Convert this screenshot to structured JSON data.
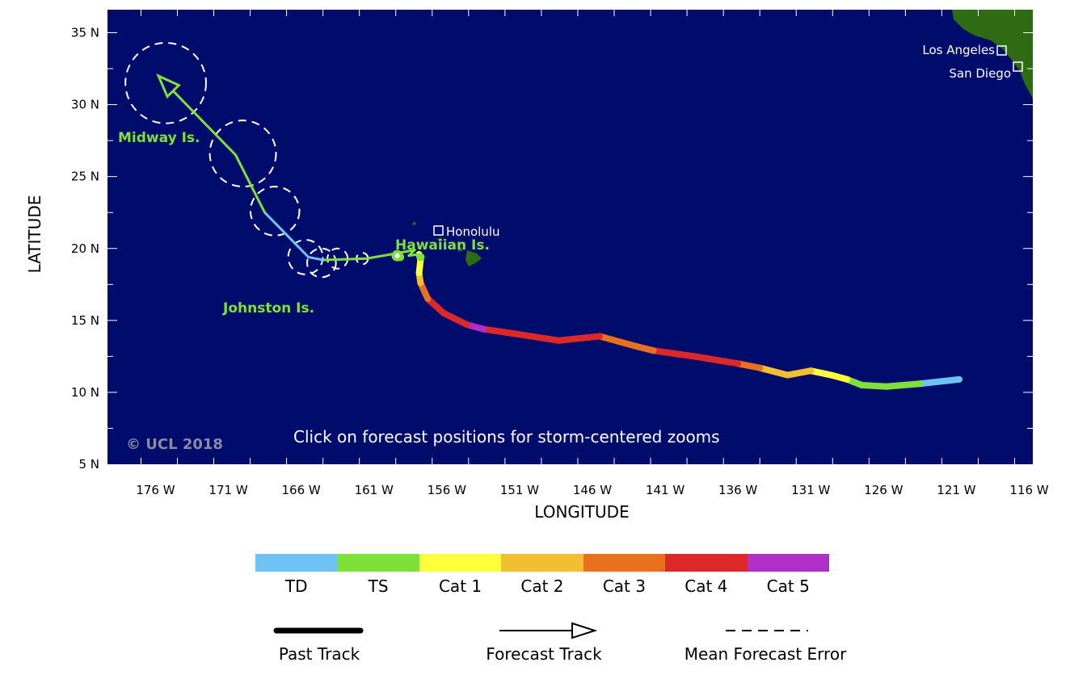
{
  "map": {
    "lon_ticks": [
      "176 W",
      "171 W",
      "166 W",
      "161 W",
      "156 W",
      "151 W",
      "146 W",
      "141 W",
      "136 W",
      "131 W",
      "126 W",
      "121 W",
      "116 W"
    ],
    "lat_ticks": [
      "35 N",
      "30 N",
      "25 N",
      "20 N",
      "15 N",
      "10 N",
      "5 N"
    ],
    "x_title": "LONGITUDE",
    "y_title": "LATITUDE",
    "ocean_color": "#000c6b",
    "land_color": "#2e6b12",
    "hint": "Click on forecast positions for storm-centered zooms",
    "copyright": "© UCL 2018",
    "places": {
      "los_angeles": "Los Angeles",
      "san_diego": "San Diego",
      "honolulu": "Honolulu"
    },
    "islands": {
      "midway": "Midway Is.",
      "hawaiian": "Hawaiian Is.",
      "johnston": "Johnston Is."
    }
  },
  "legend": {
    "categories": [
      {
        "label": "TD",
        "color": "#6ec3f4"
      },
      {
        "label": "TS",
        "color": "#7fe03a"
      },
      {
        "label": "Cat 1",
        "color": "#ffff3c"
      },
      {
        "label": "Cat 2",
        "color": "#f0c030"
      },
      {
        "label": "Cat 3",
        "color": "#e8701e"
      },
      {
        "label": "Cat 4",
        "color": "#dc2828"
      },
      {
        "label": "Cat 5",
        "color": "#b02fc8"
      }
    ],
    "past_track": "Past Track",
    "forecast_track": "Forecast Track",
    "mean_error": "Mean Forecast Error"
  },
  "track": {
    "past": [
      {
        "lon": -120.8,
        "lat": 10.9,
        "cat": "TD"
      },
      {
        "lon": -123.5,
        "lat": 10.6,
        "cat": "TD"
      },
      {
        "lon": -125.8,
        "lat": 10.4,
        "cat": "TS"
      },
      {
        "lon": -127.5,
        "lat": 10.5,
        "cat": "TS"
      },
      {
        "lon": -128.5,
        "lat": 10.9,
        "cat": "TS"
      },
      {
        "lon": -129.6,
        "lat": 11.2,
        "cat": "Cat 1"
      },
      {
        "lon": -131.0,
        "lat": 11.5,
        "cat": "Cat 1"
      },
      {
        "lon": -132.6,
        "lat": 11.2,
        "cat": "Cat 2"
      },
      {
        "lon": -134.5,
        "lat": 11.7,
        "cat": "Cat 2"
      },
      {
        "lon": -136.0,
        "lat": 12.0,
        "cat": "Cat 3"
      },
      {
        "lon": -139.0,
        "lat": 12.5,
        "cat": "Cat 4"
      },
      {
        "lon": -141.8,
        "lat": 12.9,
        "cat": "Cat 4"
      },
      {
        "lon": -143.0,
        "lat": 13.2,
        "cat": "Cat 3"
      },
      {
        "lon": -145.5,
        "lat": 13.9,
        "cat": "Cat 3"
      },
      {
        "lon": -148.3,
        "lat": 13.6,
        "cat": "Cat 4"
      },
      {
        "lon": -151.5,
        "lat": 14.1,
        "cat": "Cat 4"
      },
      {
        "lon": -153.5,
        "lat": 14.4,
        "cat": "Cat 4"
      },
      {
        "lon": -154.6,
        "lat": 14.7,
        "cat": "Cat 5"
      },
      {
        "lon": -156.2,
        "lat": 15.5,
        "cat": "Cat 4"
      },
      {
        "lon": -157.3,
        "lat": 16.5,
        "cat": "Cat 4"
      },
      {
        "lon": -157.8,
        "lat": 17.6,
        "cat": "Cat 3"
      },
      {
        "lon": -157.9,
        "lat": 18.3,
        "cat": "Cat 2"
      },
      {
        "lon": -157.8,
        "lat": 19.2,
        "cat": "Cat 1"
      },
      {
        "lon": -157.9,
        "lat": 19.6,
        "cat": "Cat 1"
      }
    ],
    "forecast": [
      {
        "lon": -157.9,
        "lat": 19.6,
        "cat": "Cat 1"
      },
      {
        "lon": -158.6,
        "lat": 19.5,
        "cat": "TS"
      },
      {
        "lon": -158.2,
        "lat": 19.9,
        "cat": "TS"
      },
      {
        "lon": -159.8,
        "lat": 19.6,
        "cat": "TS"
      },
      {
        "lon": -161.5,
        "lat": 19.3,
        "cat": "TS"
      },
      {
        "lon": -164.5,
        "lat": 19.2,
        "cat": "TS"
      },
      {
        "lon": -165.5,
        "lat": 19.4,
        "cat": "TD"
      },
      {
        "lon": -168.5,
        "lat": 22.5,
        "cat": "TD"
      },
      {
        "lon": -170.5,
        "lat": 26.5,
        "cat": "TS"
      },
      {
        "lon": -175.8,
        "lat": 32.0,
        "cat": "TS"
      }
    ],
    "error_circles": [
      {
        "lon": -161.8,
        "lat": 19.3,
        "r": 0.4
      },
      {
        "lon": -163.5,
        "lat": 19.3,
        "r": 0.7
      },
      {
        "lon": -164.6,
        "lat": 19.0,
        "r": 1.0
      },
      {
        "lon": -165.7,
        "lat": 19.4,
        "r": 1.2
      },
      {
        "lon": -167.8,
        "lat": 22.6,
        "r": 1.7
      },
      {
        "lon": -170.0,
        "lat": 26.6,
        "r": 2.3
      },
      {
        "lon": -175.3,
        "lat": 31.5,
        "r": 2.8
      }
    ],
    "dots": [
      {
        "lon": -159.4,
        "lat": 19.5
      },
      {
        "lon": -159.2,
        "lat": 19.4
      },
      {
        "lon": -157.8,
        "lat": 19.4
      }
    ]
  }
}
